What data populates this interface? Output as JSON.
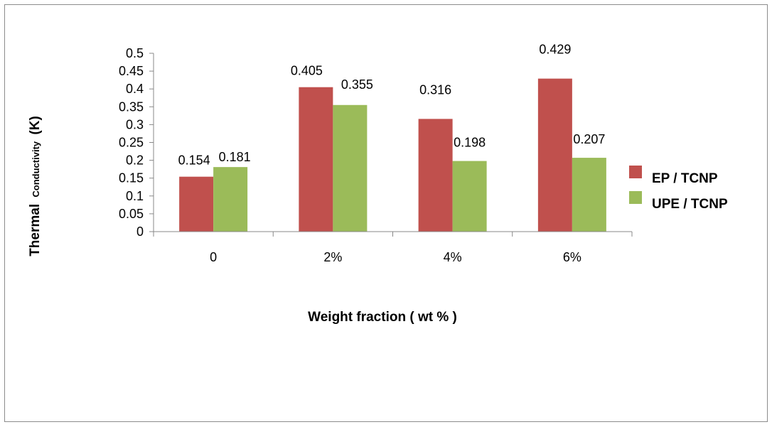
{
  "chart_data": {
    "type": "bar",
    "categories": [
      "0",
      "2%",
      "4%",
      "6%"
    ],
    "series": [
      {
        "name": "EP / TCNP",
        "values": [
          0.154,
          0.405,
          0.316,
          0.429
        ],
        "color": "#c0504d"
      },
      {
        "name": "UPE / TCNP",
        "values": [
          0.181,
          0.355,
          0.198,
          0.207
        ],
        "color": "#9bbb59"
      }
    ],
    "data_labels": [
      [
        "0.154",
        "0.405",
        "0.316",
        "0.429"
      ],
      [
        "0.181",
        "0.355",
        "0.198",
        "0.207"
      ]
    ],
    "yticks": [
      "0",
      "0.05",
      "0.1",
      "0.15",
      "0.2",
      "0.25",
      "0.3",
      "0.35",
      "0.4",
      "0.45",
      "0.5"
    ],
    "ylim": [
      0,
      0.5
    ],
    "xlabel": "Weight fraction ( wt  % )",
    "ylabel": {
      "main": "Thermal",
      "small": "Conductivity",
      "unit": "(K)"
    },
    "grid": false,
    "legend_position": "right"
  }
}
